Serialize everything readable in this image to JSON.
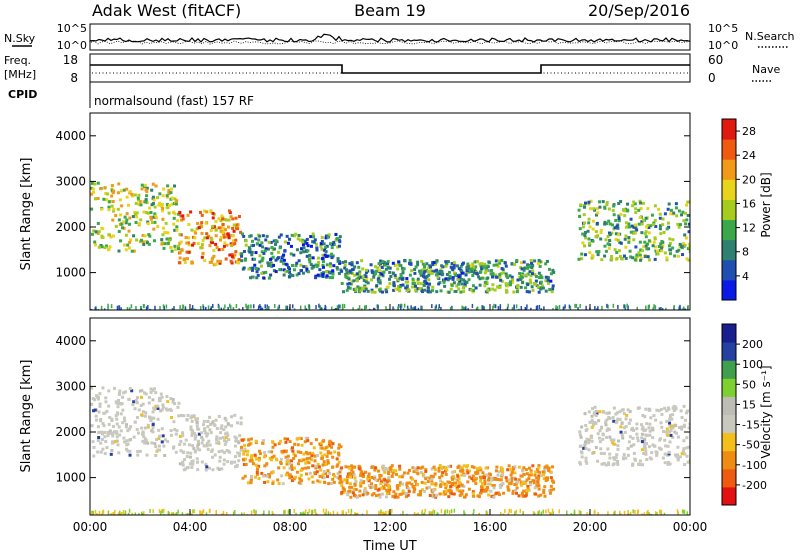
{
  "header": {
    "station": "Adak West (fitACF)",
    "beam": "Beam 19",
    "date": "20/Sep/2016"
  },
  "panels": {
    "nsky": {
      "label": "N.Sky",
      "right_label": "N.Search",
      "left_ticks": [
        "10^5",
        "10^0"
      ],
      "right_ticks": [
        "10^5",
        "10^0"
      ]
    },
    "freq": {
      "label_line1": "Freq.",
      "label_line2": "[MHz]",
      "right_label": "Nave",
      "left_ticks": [
        "18",
        "8"
      ],
      "right_ticks": [
        "60",
        "0"
      ]
    },
    "cpid": {
      "label": "CPID",
      "text": "normalsound (fast) 157 RF"
    }
  },
  "colors": {
    "power": [
      "#0a1ae6",
      "#1f4fb0",
      "#2f8070",
      "#3aa84a",
      "#a6cc1e",
      "#e8d41a",
      "#f09a18",
      "#ef5a10",
      "#e01a0e"
    ],
    "velocity": [
      "#e21010",
      "#ee5b10",
      "#f08c12",
      "#f3bf1a",
      "#c8c8be",
      "#bdbdb5",
      "#7ed030",
      "#3f9f4c",
      "#2540a0",
      "#1a1f90"
    ]
  },
  "chart_data": [
    {
      "type": "heatmap",
      "name": "power",
      "title": "",
      "xlabel": "Time UT",
      "ylabel": "Slant Range [km]",
      "xlim": [
        "00:00",
        "24:00"
      ],
      "ylim": [
        180,
        4500
      ],
      "x_ticks": [
        "00:00",
        "04:00",
        "08:00",
        "12:00",
        "16:00",
        "20:00",
        "00:00"
      ],
      "y_ticks": [
        1000,
        2000,
        3000,
        4000
      ],
      "colorbar": {
        "label": "Power [dB]",
        "range": [
          0,
          30
        ],
        "ticks": [
          4,
          8,
          12,
          16,
          20,
          24,
          28
        ]
      },
      "echo_bands": [
        {
          "t_start": 0.0,
          "t_end": 3.5,
          "r_min": 1500,
          "r_max": 3000,
          "level": 16
        },
        {
          "t_start": 3.5,
          "t_end": 6.0,
          "r_min": 1200,
          "r_max": 2400,
          "level": 22
        },
        {
          "t_start": 6.0,
          "t_end": 10.0,
          "r_min": 900,
          "r_max": 1900,
          "level": 8
        },
        {
          "t_start": 10.0,
          "t_end": 18.5,
          "r_min": 600,
          "r_max": 1300,
          "level": 10
        },
        {
          "t_start": 19.5,
          "t_end": 24.0,
          "r_min": 1300,
          "r_max": 2600,
          "level": 12
        }
      ]
    },
    {
      "type": "heatmap",
      "name": "velocity",
      "title": "",
      "xlabel": "Time UT",
      "ylabel": "Slant Range [km]",
      "xlim": [
        "00:00",
        "24:00"
      ],
      "ylim": [
        180,
        4500
      ],
      "x_ticks": [
        "00:00",
        "04:00",
        "08:00",
        "12:00",
        "16:00",
        "20:00",
        "00:00"
      ],
      "y_ticks": [
        1000,
        2000,
        3000,
        4000
      ],
      "colorbar": {
        "label": "Velocity [m s⁻¹]",
        "range": [
          -250,
          250
        ],
        "ticks": [
          200,
          100,
          50,
          15,
          -15,
          -50,
          -100,
          -200
        ]
      },
      "echo_bands": [
        {
          "t_start": 0.0,
          "t_end": 3.5,
          "r_min": 1500,
          "r_max": 3000,
          "level": 0
        },
        {
          "t_start": 3.5,
          "t_end": 6.0,
          "r_min": 1200,
          "r_max": 2400,
          "level": 0
        },
        {
          "t_start": 6.0,
          "t_end": 10.0,
          "r_min": 900,
          "r_max": 1900,
          "level": -75
        },
        {
          "t_start": 10.0,
          "t_end": 18.5,
          "r_min": 600,
          "r_max": 1300,
          "level": -60
        },
        {
          "t_start": 19.5,
          "t_end": 24.0,
          "r_min": 1300,
          "r_max": 2600,
          "level": 0
        }
      ]
    }
  ]
}
